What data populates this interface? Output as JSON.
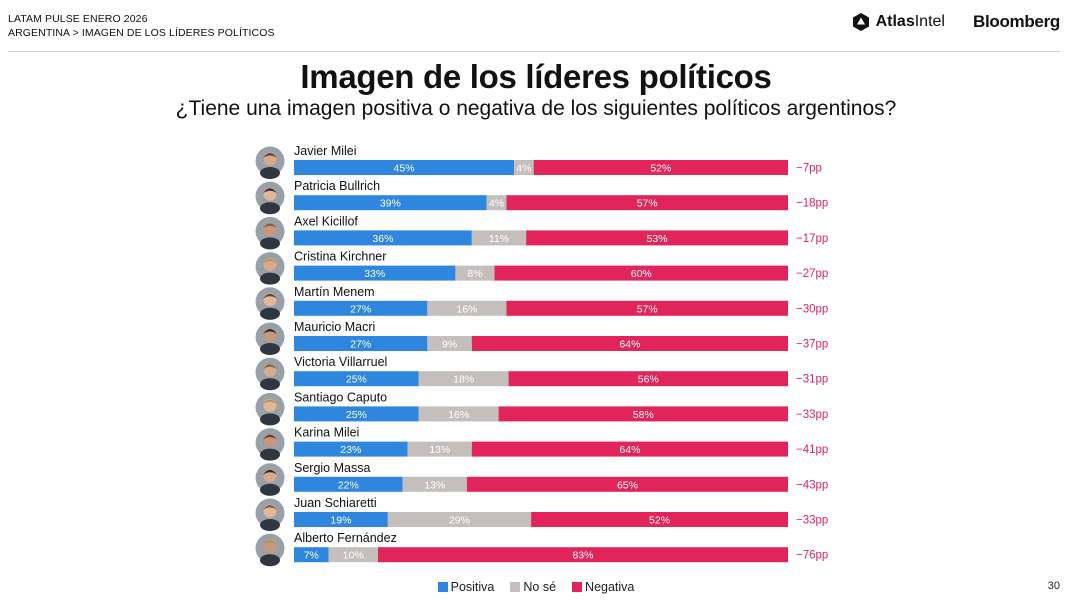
{
  "header": {
    "line1": "LATAM PULSE ENERO 2026",
    "line2": "ARGENTINA > IMAGEN DE LOS LÍDERES POLÍTICOS",
    "logo_atlas_bold": "Atlas",
    "logo_atlas_light": "Intel",
    "logo_bloomberg": "Bloomberg"
  },
  "colors": {
    "positive": "#2e86de",
    "unknown": "#c4bfbc",
    "negative": "#e1245a",
    "net_text": "#e1245a"
  },
  "chart_data": {
    "type": "bar",
    "orientation": "horizontal-stacked-100",
    "title": "Imagen de los líderes políticos",
    "subtitle": "¿Tiene una imagen positiva o negativa de los siguientes políticos argentinos?",
    "series_names": [
      "Positiva",
      "No sé",
      "Negativa"
    ],
    "rows": [
      {
        "name": "Javier Milei",
        "positive": 45,
        "unknown": 4,
        "negative": 52,
        "net": "−7pp"
      },
      {
        "name": "Patricia Bullrich",
        "positive": 39,
        "unknown": 4,
        "negative": 57,
        "net": "−18pp"
      },
      {
        "name": "Axel Kicillof",
        "positive": 36,
        "unknown": 11,
        "negative": 53,
        "net": "−17pp"
      },
      {
        "name": "Cristina Kirchner",
        "positive": 33,
        "unknown": 8,
        "negative": 60,
        "net": "−27pp"
      },
      {
        "name": "Martín Menem",
        "positive": 27,
        "unknown": 16,
        "negative": 57,
        "net": "−30pp"
      },
      {
        "name": "Mauricio Macri",
        "positive": 27,
        "unknown": 9,
        "negative": 64,
        "net": "−37pp"
      },
      {
        "name": "Victoria Villarruel",
        "positive": 25,
        "unknown": 18,
        "negative": 56,
        "net": "−31pp"
      },
      {
        "name": "Santiago Caputo",
        "positive": 25,
        "unknown": 16,
        "negative": 58,
        "net": "−33pp"
      },
      {
        "name": "Karina Milei",
        "positive": 23,
        "unknown": 13,
        "negative": 64,
        "net": "−41pp"
      },
      {
        "name": "Sergio Massa",
        "positive": 22,
        "unknown": 13,
        "negative": 65,
        "net": "−43pp"
      },
      {
        "name": "Juan Schiaretti",
        "positive": 19,
        "unknown": 29,
        "negative": 52,
        "net": "−33pp"
      },
      {
        "name": "Alberto Fernández",
        "positive": 7,
        "unknown": 10,
        "negative": 83,
        "net": "−76pp"
      }
    ]
  },
  "legend": {
    "positive": "Positiva",
    "unknown": "No sé",
    "negative": "Negativa"
  },
  "page_number": "30"
}
